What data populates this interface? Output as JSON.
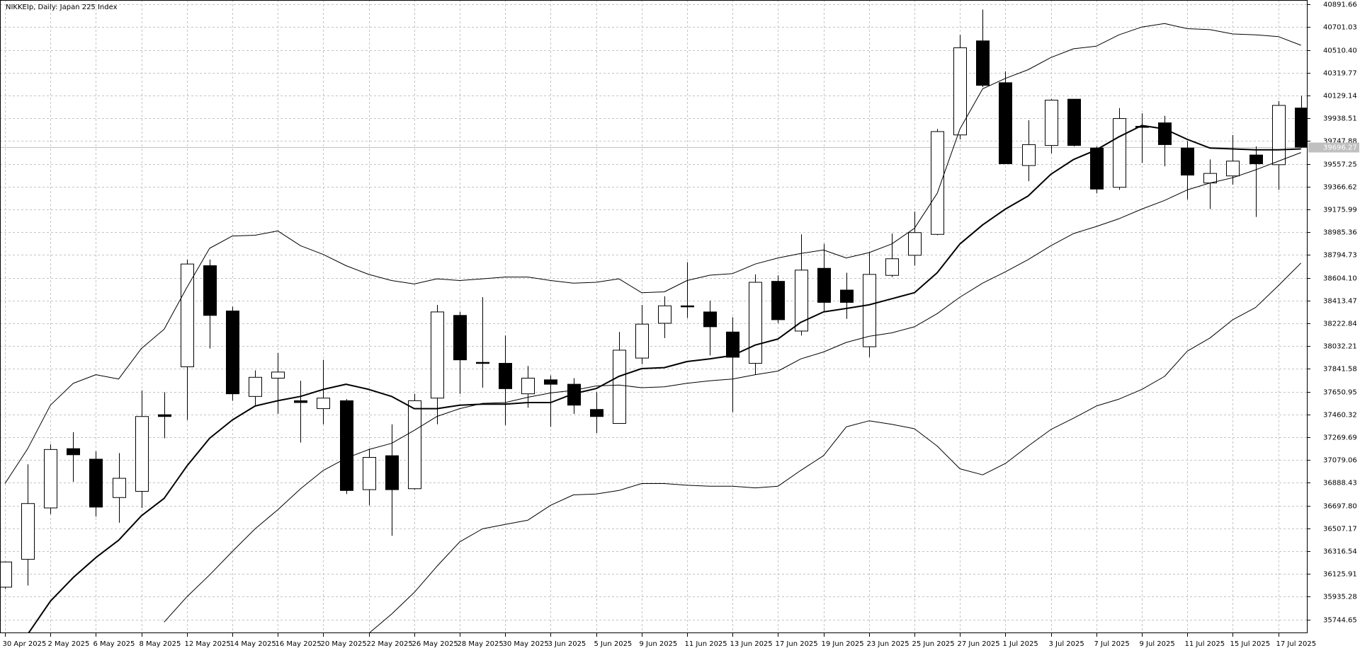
{
  "chart_data": {
    "type": "candlestick",
    "title": "NIKKEIp, Daily:  Japan 225 Index",
    "categories": [
      "30 Apr 2025",
      null,
      "2 May 2025",
      null,
      "6 May 2025",
      null,
      "8 May 2025",
      null,
      "12 May 2025",
      null,
      "14 May 2025",
      null,
      "16 May 2025",
      null,
      "20 May 2025",
      null,
      "22 May 2025",
      null,
      "26 May 2025",
      null,
      "28 May 2025",
      null,
      "30 May 2025",
      null,
      "3 Jun 2025",
      null,
      "5 Jun 2025",
      null,
      "9 Jun 2025",
      null,
      "11 Jun 2025",
      null,
      "13 Jun 2025",
      null,
      "17 Jun 2025",
      null,
      "19 Jun 2025",
      null,
      "23 Jun 2025",
      null,
      "25 Jun 2025",
      null,
      "27 Jun 2025",
      null,
      "1 Jul 2025",
      null,
      "3 Jul 2025",
      null,
      "7 Jul 2025",
      null,
      "9 Jul 2025",
      null,
      "11 Jul 2025",
      null,
      "15 Jul 2025",
      null,
      "17 Jul 2025",
      null
    ],
    "open": [
      36015,
      36248,
      36678,
      37174,
      37086,
      36765,
      36817,
      37458,
      37859,
      38705,
      38326,
      37611,
      37764,
      37575,
      37509,
      37575,
      36831,
      37115,
      36839,
      37597,
      38289,
      37896,
      37888,
      37633,
      37750,
      37713,
      37502,
      37385,
      37932,
      38223,
      38369,
      38318,
      38150,
      37888,
      38574,
      38158,
      38683,
      38501,
      38027,
      38624,
      38792,
      38967,
      39799,
      40586,
      40236,
      39543,
      39711,
      40098,
      39689,
      39361,
      39871,
      39900,
      39689,
      39397,
      39456,
      39631,
      39550,
      40024
    ],
    "high": [
      36230,
      37043,
      37210,
      37312,
      37152,
      37137,
      37662,
      37647,
      38756,
      38756,
      38362,
      37829,
      37975,
      37742,
      37917,
      37589,
      37174,
      37378,
      37633,
      38377,
      38318,
      38442,
      38121,
      37866,
      37786,
      37764,
      37647,
      38151,
      38377,
      38449,
      38734,
      38413,
      38274,
      38632,
      38624,
      38967,
      38887,
      38646,
      38814,
      38974,
      39157,
      39849,
      40636,
      40848,
      40331,
      39922,
      40098,
      40098,
      39703,
      40024,
      39980,
      39959,
      39747,
      39594,
      39798,
      39703,
      40082,
      40126
    ],
    "low": [
      36000,
      36029,
      36627,
      36897,
      36605,
      36554,
      36678,
      37261,
      37414,
      38012,
      37575,
      37538,
      37465,
      37225,
      37378,
      36795,
      36700,
      36445,
      36831,
      37378,
      37633,
      37684,
      37371,
      37516,
      37356,
      37465,
      37305,
      37385,
      37881,
      38099,
      38267,
      37954,
      37480,
      37793,
      38223,
      38121,
      38325,
      38260,
      37939,
      38610,
      38705,
      38960,
      39762,
      40199,
      39558,
      39412,
      39645,
      39703,
      39310,
      39339,
      39565,
      39536,
      39259,
      39179,
      39383,
      39113,
      39339,
      39690
    ],
    "close": [
      36226,
      36715,
      37167,
      37123,
      36685,
      36926,
      37443,
      37443,
      38719,
      38289,
      37633,
      37771,
      37815,
      37560,
      37597,
      36824,
      37101,
      36831,
      37575,
      38318,
      37917,
      37888,
      37676,
      37764,
      37713,
      37538,
      37443,
      37998,
      38216,
      38369,
      38362,
      38194,
      37939,
      38566,
      38253,
      38668,
      38398,
      38398,
      38632,
      38763,
      38982,
      39827,
      40528,
      40214,
      39558,
      39718,
      40090,
      39711,
      39346,
      39936,
      39864,
      39718,
      39463,
      39477,
      39580,
      39558,
      40046,
      39696.27
    ],
    "up_color": "#ffffff",
    "down_color": "#000000",
    "series": [
      {
        "color": "#000000",
        "width": 2,
        "values": [
          null,
          35621,
          35898,
          36095,
          36263,
          36408,
          36612,
          36758,
          37028,
          37261,
          37414,
          37531,
          37575,
          37611,
          37670,
          37713,
          37670,
          37611,
          37509,
          37509,
          37538,
          37546,
          37546,
          37560,
          37560,
          37633,
          37677,
          37779,
          37844,
          37852,
          37903,
          37925,
          37954,
          38041,
          38092,
          38231,
          38318,
          38347,
          38377,
          38428,
          38479,
          38646,
          38887,
          39047,
          39179,
          39288,
          39470,
          39594,
          39674,
          39784,
          39878,
          39849,
          39762,
          39689,
          39682,
          39674,
          39674,
          39682
        ]
      },
      {
        "color": "#000000",
        "width": 1,
        "values": [
          null,
          null,
          null,
          null,
          null,
          null,
          null,
          35723,
          35934,
          36117,
          36314,
          36503,
          36663,
          36838,
          36992,
          37094,
          37167,
          37218,
          37327,
          37444,
          37509,
          37553,
          37560,
          37604,
          37640,
          37662,
          37699,
          37706,
          37684,
          37691,
          37721,
          37742,
          37757,
          37793,
          37823,
          37925,
          37983,
          38063,
          38114,
          38143,
          38194,
          38304,
          38442,
          38559,
          38654,
          38756,
          38872,
          38974,
          39033,
          39098,
          39179,
          39251,
          39339,
          39397,
          39441,
          39507,
          39579,
          39652
        ]
      },
      {
        "color": "#000000",
        "width": 1,
        "values": [
          36882,
          37174,
          37538,
          37720,
          37793,
          37757,
          38012,
          38173,
          38522,
          38850,
          38953,
          38960,
          38996,
          38872,
          38799,
          38705,
          38632,
          38581,
          38552,
          38595,
          38581,
          38595,
          38610,
          38610,
          38581,
          38559,
          38566,
          38595,
          38479,
          38486,
          38581,
          38625,
          38639,
          38719,
          38770,
          38807,
          38836,
          38770,
          38814,
          38887,
          39018,
          39310,
          39849,
          40185,
          40272,
          40345,
          40447,
          40520,
          40542,
          40637,
          40702,
          40731,
          40688,
          40680,
          40644,
          40637,
          40622,
          40549
        ]
      },
      {
        "color": "#000000",
        "width": 1,
        "values": [
          null,
          null,
          null,
          null,
          null,
          null,
          null,
          null,
          null,
          null,
          null,
          null,
          null,
          null,
          null,
          null,
          35628,
          35789,
          35971,
          36190,
          36394,
          36503,
          36540,
          36576,
          36700,
          36787,
          36795,
          36824,
          36882,
          36882,
          36868,
          36860,
          36860,
          36846,
          36860,
          36992,
          37115,
          37356,
          37407,
          37378,
          37341,
          37196,
          37006,
          36955,
          37050,
          37196,
          37334,
          37429,
          37531,
          37589,
          37670,
          37779,
          37990,
          38100,
          38253,
          38355,
          38537,
          38727
        ]
      }
    ],
    "last_price": 39696.27,
    "ylim": [
      35630,
      40928
    ],
    "yticks": [
      35744.65,
      35935.28,
      36125.91,
      36316.54,
      36507.17,
      {
        "value": 36697.8,
        "label": "36697.80"
      },
      36888.43,
      37079.06,
      37269.69,
      37460.32,
      37650.95,
      37841.58,
      38032.21,
      38222.84,
      38413.47,
      {
        "value": 38604.1,
        "label": "38604.10"
      },
      38794.73,
      38985.36,
      39175.99,
      39366.62,
      39557.25,
      39747.88,
      39938.51,
      40129.14,
      40319.77,
      {
        "value": 40510.4,
        "label": "40510.40"
      },
      40701.03,
      40891.66
    ],
    "grid": true
  }
}
